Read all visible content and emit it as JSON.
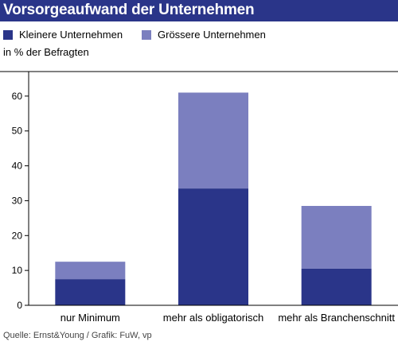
{
  "chart_data": {
    "type": "bar",
    "stacked": true,
    "title": "Vorsorgeaufwand der Unternehmen",
    "ylabel": "in % der Befragten",
    "categories": [
      "nur Minimum",
      "mehr als obligatorisch",
      "mehr als Branchenschnitt"
    ],
    "series": [
      {
        "name": "Kleinere Unternehmen",
        "values": [
          7.5,
          33.5,
          10.5
        ],
        "color": "#2a3589"
      },
      {
        "name": "Grössere Unternehmen",
        "values": [
          5,
          27.5,
          18
        ],
        "color": "#7b7fbf"
      }
    ],
    "ylim": [
      0,
      70
    ],
    "yticks": [
      0,
      10,
      20,
      30,
      40,
      50,
      60
    ],
    "grid": false,
    "legend_position": "top-left"
  },
  "source": "Quelle: Ernst&Young / Grafik: FuW, vp"
}
